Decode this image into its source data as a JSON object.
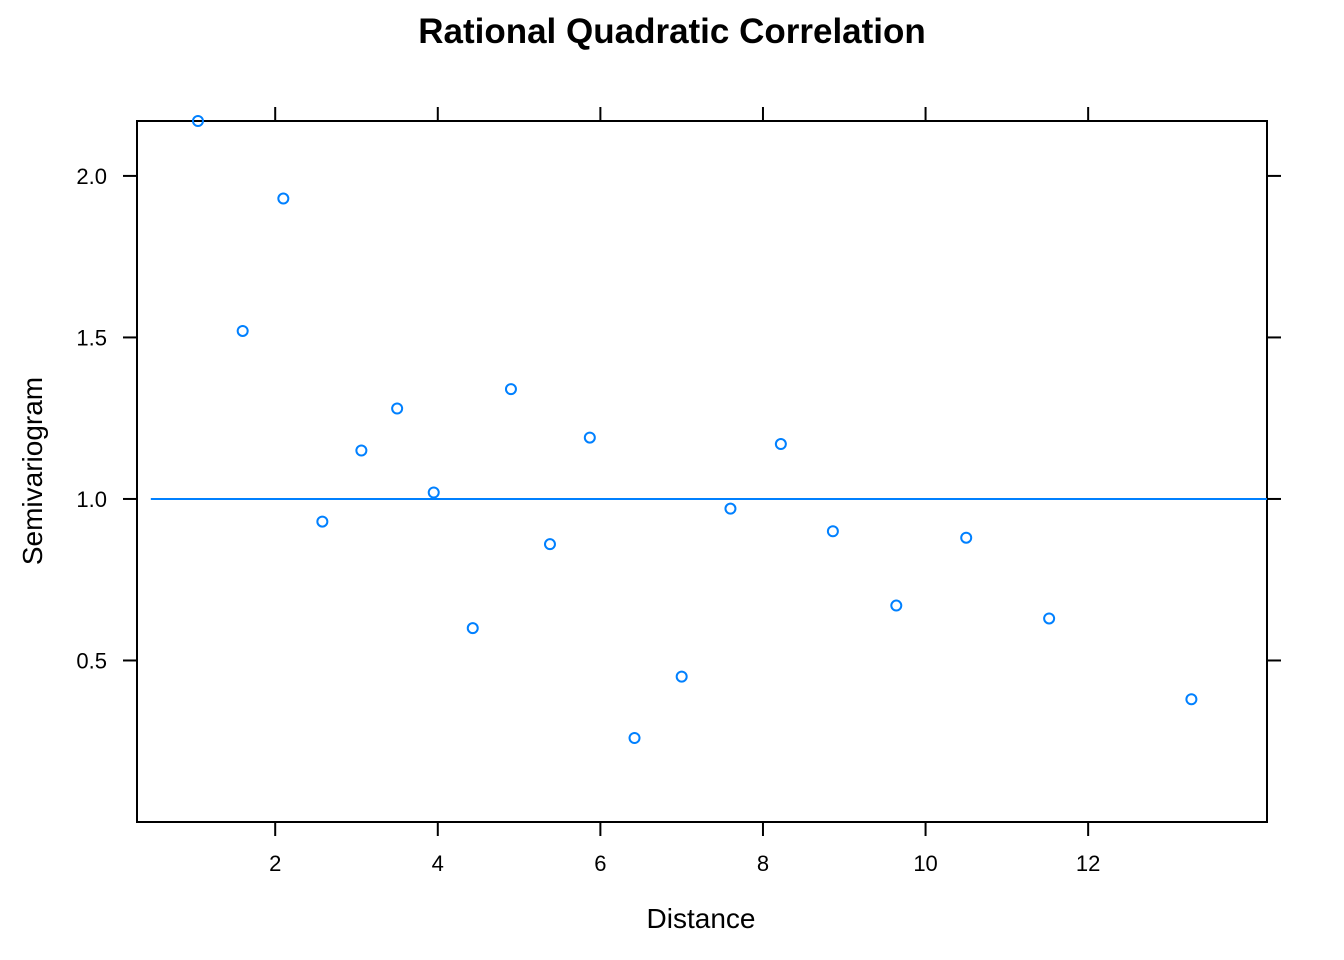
{
  "chart_data": {
    "type": "scatter",
    "title": "Rational Quadratic Correlation",
    "xlabel": "Distance",
    "ylabel": "Semivariogram",
    "xlim": [
      0.3,
      14.2
    ],
    "ylim": [
      0.0,
      2.17
    ],
    "x_ticks": [
      2,
      4,
      6,
      8,
      10,
      12
    ],
    "y_ticks": [
      0.5,
      1.0,
      1.5,
      2.0
    ],
    "x_tick_labels": [
      "2",
      "4",
      "6",
      "8",
      "10",
      "12"
    ],
    "y_tick_labels": [
      "0.5",
      "1.0",
      "1.5",
      "2.0"
    ],
    "grid": false,
    "reference_line": {
      "y": 1.0,
      "x_from": 0.47,
      "x_to": 14.2
    },
    "colors": {
      "points": "#0080ff",
      "line": "#0080ff",
      "axis": "#000000"
    },
    "points": [
      {
        "x": 1.05,
        "y": 2.17
      },
      {
        "x": 1.6,
        "y": 1.52
      },
      {
        "x": 2.1,
        "y": 1.93
      },
      {
        "x": 2.58,
        "y": 0.93
      },
      {
        "x": 3.06,
        "y": 1.15
      },
      {
        "x": 3.5,
        "y": 1.28
      },
      {
        "x": 3.95,
        "y": 1.02
      },
      {
        "x": 4.43,
        "y": 0.6
      },
      {
        "x": 4.9,
        "y": 1.34
      },
      {
        "x": 5.38,
        "y": 0.86
      },
      {
        "x": 5.87,
        "y": 1.19
      },
      {
        "x": 6.42,
        "y": 0.26
      },
      {
        "x": 7.0,
        "y": 0.45
      },
      {
        "x": 7.6,
        "y": 0.97
      },
      {
        "x": 8.22,
        "y": 1.17
      },
      {
        "x": 8.86,
        "y": 0.9
      },
      {
        "x": 9.64,
        "y": 0.67
      },
      {
        "x": 10.5,
        "y": 0.88
      },
      {
        "x": 11.52,
        "y": 0.63
      },
      {
        "x": 13.27,
        "y": 0.38
      }
    ]
  }
}
